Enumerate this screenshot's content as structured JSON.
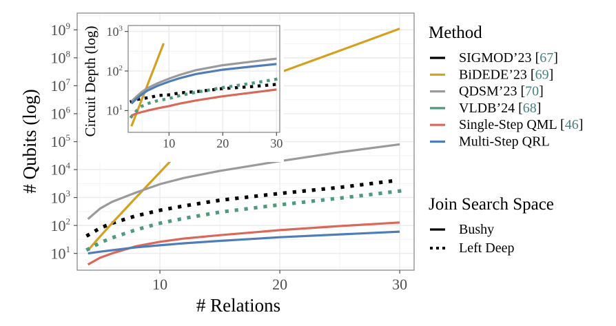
{
  "chart_data": [
    {
      "type": "line",
      "id": "main",
      "title": "",
      "xlabel": "# Relations",
      "ylabel": "# Qubits (log)",
      "xlim": [
        3.1,
        31.2
      ],
      "ylim_log10": [
        0.4,
        9.6
      ],
      "yscale": "log",
      "xticks": [
        10,
        20,
        30
      ],
      "xtick_labels": [
        "10",
        "20",
        "30"
      ],
      "yticks_exp": [
        1,
        2,
        3,
        4,
        5,
        6,
        7,
        8,
        9
      ],
      "ytick_base": "10",
      "grid": true,
      "x": [
        4,
        5,
        6,
        8,
        10,
        12,
        15,
        20,
        25,
        30
      ],
      "series": [
        {
          "name": "SIGMOD'23",
          "style": "Left Deep",
          "color": "#000000",
          "values": [
            45,
            80,
            120,
            220,
            350,
            500,
            800,
            1400,
            2300,
            4200
          ]
        },
        {
          "name": "BiDEDE'23",
          "style": "Bushy",
          "color": "#d4a020",
          "values": [
            13,
            40,
            120,
            1000,
            8000,
            65000,
            1300000,
            30000000,
            180000000,
            1100000000
          ]
        },
        {
          "name": "QDSM'23",
          "style": "Bushy",
          "color": "#9a9a9a",
          "values": [
            170,
            400,
            700,
            1500,
            3000,
            5000,
            9000,
            20000,
            42000,
            80000
          ]
        },
        {
          "name": "VLDB'24",
          "style": "Left Deep",
          "color": "#4e9a7a",
          "values": [
            14,
            24,
            36,
            70,
            120,
            180,
            300,
            550,
            950,
            1700
          ]
        },
        {
          "name": "Single-Step QML",
          "style": "Bushy",
          "color": "#d9675a",
          "values": [
            4,
            7,
            10,
            18,
            26,
            34,
            45,
            68,
            95,
            128
          ]
        },
        {
          "name": "Multi-Step QRL",
          "style": "Bushy",
          "color": "#4f7db8",
          "values": [
            10,
            11.5,
            13,
            16.5,
            19.5,
            23,
            28,
            38,
            48,
            60
          ]
        }
      ]
    },
    {
      "type": "line",
      "id": "inset",
      "title": "",
      "xlabel": "",
      "ylabel": "Circuit Depth (log)",
      "xlim": [
        2.4,
        30.6
      ],
      "ylim_log10": [
        0.45,
        3.15
      ],
      "yscale": "log",
      "xticks": [
        10,
        20,
        30
      ],
      "xtick_labels": [
        "10",
        "20",
        "30"
      ],
      "yticks_exp": [
        1,
        2,
        3
      ],
      "ytick_base": "10",
      "grid": true,
      "x": [
        3,
        4,
        5,
        6,
        8,
        10,
        12,
        15,
        20,
        25,
        30
      ],
      "series": [
        {
          "name": "SIGMOD'23",
          "style": "Left Deep",
          "color": "#000000",
          "values": [
            17,
            19,
            20,
            21,
            24,
            25,
            28,
            30,
            36,
            40,
            46
          ]
        },
        {
          "name": "BiDEDE'23",
          "style": "Bushy",
          "color": "#d4a020",
          "x": [
            3,
            9
          ],
          "values": [
            4,
            500
          ]
        },
        {
          "name": "QDSM'23",
          "style": "Bushy",
          "color": "#9a9a9a",
          "values": [
            17,
            23,
            30,
            37,
            50,
            64,
            80,
            105,
            140,
            170,
            205
          ]
        },
        {
          "name": "VLDB'24",
          "style": "Left Deep",
          "color": "#4e9a7a",
          "values": [
            7,
            10,
            13,
            15,
            18,
            20,
            24,
            29,
            38,
            48,
            62
          ]
        },
        {
          "name": "Single-Step QML",
          "style": "Bushy",
          "color": "#d9675a",
          "values": [
            7.5,
            8.5,
            9.2,
            10,
            11.5,
            13,
            15,
            18,
            23,
            28,
            34
          ]
        },
        {
          "name": "Multi-Step QRL",
          "style": "Bushy",
          "color": "#4f7db8",
          "values": [
            15,
            20,
            26,
            32,
            43,
            54,
            66,
            84,
            108,
            128,
            150
          ]
        }
      ]
    }
  ],
  "legend": {
    "placement": "right",
    "method": {
      "title": "Method",
      "items": [
        {
          "label": "SIGMOD’23",
          "ref": "67",
          "color": "#000000"
        },
        {
          "label": "BiDEDE’23",
          "ref": "69",
          "color": "#d4a020"
        },
        {
          "label": "QDSM’23",
          "ref": "70",
          "color": "#9a9a9a"
        },
        {
          "label": "VLDB’24",
          "ref": "68",
          "color": "#4e9a7a"
        },
        {
          "label": "Single-Step QML",
          "ref": "46",
          "color": "#d9675a"
        },
        {
          "label": "Multi-Step QRL",
          "ref": "",
          "color": "#4f7db8"
        }
      ]
    },
    "space": {
      "title": "Join Search Space",
      "items": [
        {
          "label": "Bushy",
          "linetype": "solid"
        },
        {
          "label": "Left Deep",
          "linetype": "dotted"
        }
      ]
    }
  },
  "colors": {
    "grid": "#ebebeb",
    "panel_border": "#7f7f7f",
    "ref_text": "#4a7f7f"
  }
}
